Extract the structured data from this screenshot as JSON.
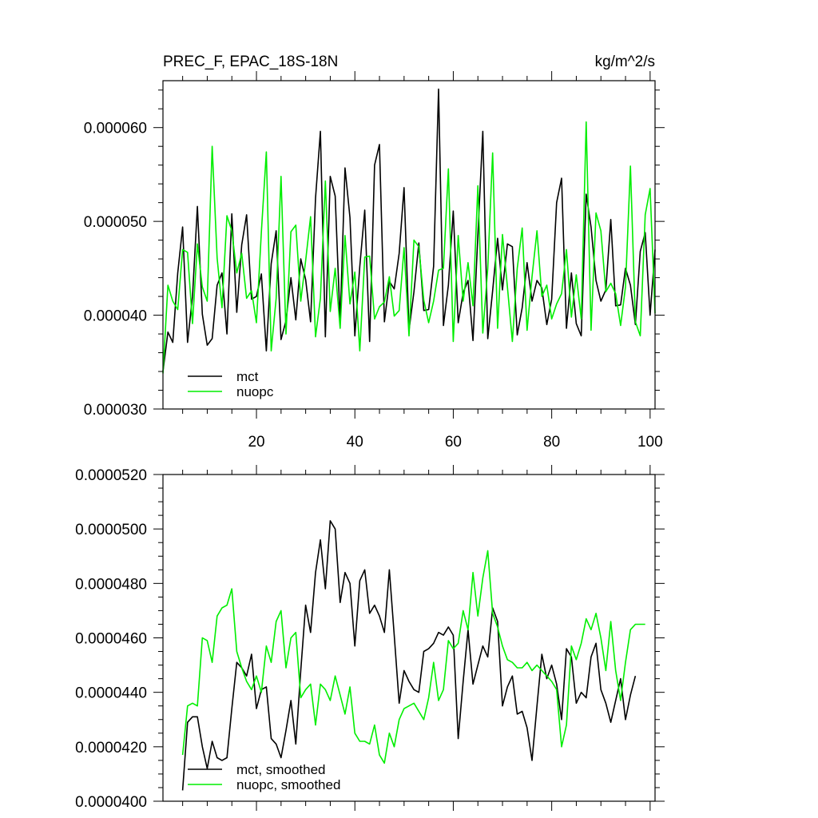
{
  "chart_data": [
    {
      "type": "line",
      "title": "PREC_F, EPAC_18S-18N",
      "units": "kg/m^2/s",
      "xlim": [
        1,
        101
      ],
      "ylim": [
        3e-05,
        6.5e-05
      ],
      "yticks": [
        3e-05,
        4e-05,
        5e-05,
        6e-05
      ],
      "ytick_labels": [
        "0.000030",
        "0.000040",
        "0.000050",
        "0.000060"
      ],
      "xticks": [
        20,
        40,
        60,
        80,
        100
      ],
      "xtick_labels": [
        "20",
        "40",
        "60",
        "80",
        "100"
      ],
      "legend_position": "bottom-left",
      "series": [
        {
          "name": "mct",
          "color": "#000000",
          "x": [
            1,
            2,
            3,
            4,
            5,
            6,
            7,
            8,
            9,
            10,
            11,
            12,
            13,
            14,
            15,
            16,
            17,
            18,
            19,
            20,
            21,
            22,
            23,
            24,
            25,
            26,
            27,
            28,
            29,
            30,
            31,
            32,
            33,
            34,
            35,
            36,
            37,
            38,
            39,
            40,
            41,
            42,
            43,
            44,
            45,
            46,
            47,
            48,
            49,
            50,
            51,
            52,
            53,
            54,
            55,
            56,
            57,
            58,
            59,
            60,
            61,
            62,
            63,
            64,
            65,
            66,
            67,
            68,
            69,
            70,
            71,
            72,
            73,
            74,
            75,
            76,
            77,
            78,
            79,
            80,
            81,
            82,
            83,
            84,
            85,
            86,
            87,
            88,
            89,
            90,
            91,
            92,
            93,
            94,
            95,
            96,
            97,
            98,
            99,
            100,
            101
          ],
          "values": [
            3.4e-05,
            3.82e-05,
            3.71e-05,
            4.45e-05,
            4.94e-05,
            3.71e-05,
            4.2e-05,
            5.16e-05,
            4.01e-05,
            3.68e-05,
            3.75e-05,
            4.32e-05,
            4.45e-05,
            3.8e-05,
            5.08e-05,
            4.03e-05,
            4.75e-05,
            5.07e-05,
            4.17e-05,
            4.2e-05,
            4.44e-05,
            3.62e-05,
            4.55e-05,
            4.9e-05,
            3.74e-05,
            3.94e-05,
            4.4e-05,
            3.95e-05,
            4.6e-05,
            4.38e-05,
            3.93e-05,
            5.25e-05,
            5.96e-05,
            3.77e-05,
            5.48e-05,
            5.27e-05,
            3.92e-05,
            5.57e-05,
            5.04e-05,
            3.78e-05,
            4.52e-05,
            5.12e-05,
            3.72e-05,
            5.6e-05,
            5.82e-05,
            3.93e-05,
            4.36e-05,
            4.28e-05,
            4.66e-05,
            5.36e-05,
            3.84e-05,
            4.25e-05,
            4.77e-05,
            4.05e-05,
            4.06e-05,
            4.52e-05,
            6.41e-05,
            3.89e-05,
            4.32e-05,
            5.11e-05,
            3.92e-05,
            4.24e-05,
            4.37e-05,
            3.73e-05,
            4.85e-05,
            5.96e-05,
            3.75e-05,
            4.26e-05,
            4.82e-05,
            4.27e-05,
            4.76e-05,
            4.73e-05,
            3.79e-05,
            4.08e-05,
            4.56e-05,
            4.15e-05,
            4.37e-05,
            4.29e-05,
            3.9e-05,
            4.17e-05,
            5.2e-05,
            5.46e-05,
            3.86e-05,
            4.45e-05,
            3.91e-05,
            3.78e-05,
            5.29e-05,
            4.94e-05,
            4.37e-05,
            4.15e-05,
            4.27e-05,
            5.02e-05,
            4.1e-05,
            4.11e-05,
            4.5e-05,
            4.32e-05,
            3.9e-05,
            4.68e-05,
            4.88e-05,
            4e-05,
            4.7e-05
          ]
        },
        {
          "name": "nuopc",
          "color": "#00ee00",
          "x": [
            1,
            2,
            3,
            4,
            5,
            6,
            7,
            8,
            9,
            10,
            11,
            12,
            13,
            14,
            15,
            16,
            17,
            18,
            19,
            20,
            21,
            22,
            23,
            24,
            25,
            26,
            27,
            28,
            29,
            30,
            31,
            32,
            33,
            34,
            35,
            36,
            37,
            38,
            39,
            40,
            41,
            42,
            43,
            44,
            45,
            46,
            47,
            48,
            49,
            50,
            51,
            52,
            53,
            54,
            55,
            56,
            57,
            58,
            59,
            60,
            61,
            62,
            63,
            64,
            65,
            66,
            67,
            68,
            69,
            70,
            71,
            72,
            73,
            74,
            75,
            76,
            77,
            78,
            79,
            80,
            81,
            82,
            83,
            84,
            85,
            86,
            87,
            88,
            89,
            90,
            91,
            92,
            93,
            94,
            95,
            96,
            97,
            98,
            99,
            100,
            101
          ],
          "values": [
            3.38e-05,
            4.32e-05,
            4.15e-05,
            4.06e-05,
            4.7e-05,
            4.67e-05,
            3.91e-05,
            4.76e-05,
            4.3e-05,
            4.15e-05,
            5.8e-05,
            4.61e-05,
            4.08e-05,
            5.06e-05,
            4.9e-05,
            4.45e-05,
            4.66e-05,
            4.18e-05,
            4.26e-05,
            3.92e-05,
            4.89e-05,
            5.74e-05,
            3.62e-05,
            4.18e-05,
            5.48e-05,
            3.8e-05,
            4.89e-05,
            4.96e-05,
            4.15e-05,
            4.58e-05,
            5.05e-05,
            3.77e-05,
            4.18e-05,
            5.43e-05,
            4.04e-05,
            4.5e-05,
            3.86e-05,
            4.85e-05,
            4.12e-05,
            4.46e-05,
            3.62e-05,
            4.62e-05,
            4.63e-05,
            3.96e-05,
            4.09e-05,
            4.14e-05,
            4.41e-05,
            3.99e-05,
            4.05e-05,
            4.72e-05,
            3.78e-05,
            4.8e-05,
            4.73e-05,
            4.16e-05,
            3.92e-05,
            4.15e-05,
            4.48e-05,
            4.5e-05,
            5.56e-05,
            3.72e-05,
            4.85e-05,
            4.15e-05,
            4.56e-05,
            4.1e-05,
            5.38e-05,
            3.81e-05,
            4.5e-05,
            5.73e-05,
            3.86e-05,
            4.86e-05,
            4.3e-05,
            3.72e-05,
            4.5e-05,
            4.93e-05,
            3.84e-05,
            4.41e-05,
            4.9e-05,
            4.2e-05,
            4.32e-05,
            3.96e-05,
            4.12e-05,
            4.23e-05,
            4.7e-05,
            3.98e-05,
            4.43e-05,
            3.96e-05,
            6.06e-05,
            3.84e-05,
            5.09e-05,
            4.9e-05,
            4.25e-05,
            4.34e-05,
            4.23e-05,
            3.89e-05,
            4.3e-05,
            5.59e-05,
            3.93e-05,
            3.78e-05,
            5.07e-05,
            5.35e-05,
            4.02e-05
          ]
        }
      ]
    },
    {
      "type": "line",
      "title": "",
      "ylim": [
        4e-05,
        5.2e-05
      ],
      "yticks": [
        4e-05,
        4.2e-05,
        4.4e-05,
        4.6e-05,
        4.8e-05,
        5e-05,
        5.2e-05
      ],
      "ytick_labels": [
        "0.0000400",
        "0.0000420",
        "0.0000440",
        "0.0000460",
        "0.0000480",
        "0.0000500",
        "0.0000520"
      ],
      "xlim": [
        1,
        101
      ],
      "xticks": [
        20,
        40,
        60,
        80,
        100
      ],
      "legend_position": "bottom-left",
      "series": [
        {
          "name": "mct, smoothed",
          "color": "#000000",
          "x": [
            5,
            6,
            7,
            8,
            9,
            10,
            11,
            12,
            13,
            14,
            15,
            16,
            17,
            18,
            19,
            20,
            21,
            22,
            23,
            24,
            25,
            26,
            27,
            28,
            29,
            30,
            31,
            32,
            33,
            34,
            35,
            36,
            37,
            38,
            39,
            40,
            41,
            42,
            43,
            44,
            45,
            46,
            47,
            48,
            49,
            50,
            51,
            52,
            53,
            54,
            55,
            56,
            57,
            58,
            59,
            60,
            61,
            62,
            63,
            64,
            65,
            66,
            67,
            68,
            69,
            70,
            71,
            72,
            73,
            74,
            75,
            76,
            77,
            78,
            79,
            80,
            81,
            82,
            83,
            84,
            85,
            86,
            87,
            88,
            89,
            90,
            91,
            92,
            93,
            94,
            95,
            96,
            97
          ],
          "values": [
            4.04e-05,
            4.29e-05,
            4.31e-05,
            4.31e-05,
            4.2e-05,
            4.12e-05,
            4.22e-05,
            4.16e-05,
            4.15e-05,
            4.16e-05,
            4.34e-05,
            4.51e-05,
            4.49e-05,
            4.46e-05,
            4.54e-05,
            4.34e-05,
            4.41e-05,
            4.42e-05,
            4.23e-05,
            4.21e-05,
            4.16e-05,
            4.26e-05,
            4.37e-05,
            4.21e-05,
            4.48e-05,
            4.72e-05,
            4.62e-05,
            4.84e-05,
            4.96e-05,
            4.78e-05,
            5.03e-05,
            5e-05,
            4.73e-05,
            4.84e-05,
            4.8e-05,
            4.57e-05,
            4.81e-05,
            4.85e-05,
            4.69e-05,
            4.72e-05,
            4.68e-05,
            4.62e-05,
            4.85e-05,
            4.61e-05,
            4.36e-05,
            4.48e-05,
            4.44e-05,
            4.41e-05,
            4.4e-05,
            4.55e-05,
            4.56e-05,
            4.58e-05,
            4.62e-05,
            4.61e-05,
            4.64e-05,
            4.61e-05,
            4.23e-05,
            4.44e-05,
            4.63e-05,
            4.43e-05,
            4.5e-05,
            4.57e-05,
            4.53e-05,
            4.71e-05,
            4.66e-05,
            4.35e-05,
            4.42e-05,
            4.46e-05,
            4.32e-05,
            4.33e-05,
            4.27e-05,
            4.15e-05,
            4.35e-05,
            4.54e-05,
            4.45e-05,
            4.5e-05,
            4.43e-05,
            4.3e-05,
            4.56e-05,
            4.53e-05,
            4.36e-05,
            4.4e-05,
            4.38e-05,
            4.53e-05,
            4.58e-05,
            4.41e-05,
            4.36e-05,
            4.29e-05,
            4.37e-05,
            4.45e-05,
            4.3e-05,
            4.39e-05,
            4.46e-05
          ]
        },
        {
          "name": "nuopc, smoothed",
          "color": "#00ee00",
          "x": [
            5,
            6,
            7,
            8,
            9,
            10,
            11,
            12,
            13,
            14,
            15,
            16,
            17,
            18,
            19,
            20,
            21,
            22,
            23,
            24,
            25,
            26,
            27,
            28,
            29,
            30,
            31,
            32,
            33,
            34,
            35,
            36,
            37,
            38,
            39,
            40,
            41,
            42,
            43,
            44,
            45,
            46,
            47,
            48,
            49,
            50,
            51,
            52,
            53,
            54,
            55,
            56,
            57,
            58,
            59,
            60,
            61,
            62,
            63,
            64,
            65,
            66,
            67,
            68,
            69,
            70,
            71,
            72,
            73,
            74,
            75,
            76,
            77,
            78,
            79,
            80,
            81,
            82,
            83,
            84,
            85,
            86,
            87,
            88,
            89,
            90,
            91,
            92,
            93,
            94,
            95,
            96,
            97,
            98,
            99
          ],
          "values": [
            4.17e-05,
            4.35e-05,
            4.36e-05,
            4.35e-05,
            4.6e-05,
            4.59e-05,
            4.51e-05,
            4.68e-05,
            4.71e-05,
            4.72e-05,
            4.78e-05,
            4.55e-05,
            4.49e-05,
            4.44e-05,
            4.41e-05,
            4.46e-05,
            4.4e-05,
            4.57e-05,
            4.51e-05,
            4.66e-05,
            4.7e-05,
            4.49e-05,
            4.6e-05,
            4.62e-05,
            4.38e-05,
            4.41e-05,
            4.43e-05,
            4.28e-05,
            4.43e-05,
            4.41e-05,
            4.37e-05,
            4.46e-05,
            4.39e-05,
            4.32e-05,
            4.42e-05,
            4.25e-05,
            4.22e-05,
            4.22e-05,
            4.21e-05,
            4.28e-05,
            4.17e-05,
            4.14e-05,
            4.25e-05,
            4.2e-05,
            4.3e-05,
            4.34e-05,
            4.35e-05,
            4.36e-05,
            4.33e-05,
            4.3e-05,
            4.38e-05,
            4.51e-05,
            4.37e-05,
            4.41e-05,
            4.59e-05,
            4.56e-05,
            4.58e-05,
            4.7e-05,
            4.63e-05,
            4.84e-05,
            4.68e-05,
            4.82e-05,
            4.92e-05,
            4.69e-05,
            4.64e-05,
            4.57e-05,
            4.52e-05,
            4.51e-05,
            4.49e-05,
            4.49e-05,
            4.51e-05,
            4.48e-05,
            4.5e-05,
            4.48e-05,
            4.46e-05,
            4.44e-05,
            4.41e-05,
            4.2e-05,
            4.28e-05,
            4.57e-05,
            4.52e-05,
            4.58e-05,
            4.67e-05,
            4.63e-05,
            4.69e-05,
            4.6e-05,
            4.48e-05,
            4.66e-05,
            4.48e-05,
            4.37e-05,
            4.51e-05,
            4.63e-05,
            4.65e-05,
            4.65e-05,
            4.65e-05
          ]
        }
      ]
    }
  ]
}
